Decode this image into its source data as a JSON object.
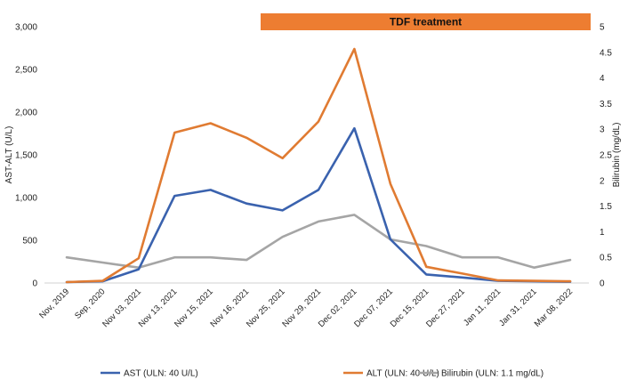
{
  "chart_data": {
    "type": "line",
    "categories": [
      "Nov, 2019",
      "Sep, 2020",
      "Nov 03, 2021",
      "Nov 13, 2021",
      "Nov 15, 2021",
      "Nov 16, 2021",
      "Nov 25, 2021",
      "Nov 29, 2021",
      "Dec 02, 2021",
      "Dec 07, 2021",
      "Dec 15, 2021",
      "Dec 27, 2021",
      "Jan 11, 2021",
      "Jan 31, 2021",
      "Mar 08, 2022"
    ],
    "series": [
      {
        "name": "AST (ULN: 40 U/L)",
        "axis": "left",
        "color": "#3A62AE",
        "values": [
          10,
          20,
          160,
          1020,
          1090,
          930,
          850,
          1090,
          1810,
          510,
          100,
          65,
          25,
          20,
          15
        ]
      },
      {
        "name": "ALT (ULN: 40 U/L)",
        "axis": "left",
        "color": "#E07B32",
        "values": [
          10,
          25,
          290,
          1760,
          1870,
          1700,
          1460,
          1890,
          2740,
          1160,
          190,
          110,
          30,
          25,
          20
        ]
      },
      {
        "name": "Bilirubin (ULN: 1.1 mg/dL)",
        "axis": "right",
        "color": "#A5A5A5",
        "values": [
          0.5,
          0.4,
          0.3,
          0.5,
          0.5,
          0.45,
          0.9,
          1.2,
          1.33,
          0.85,
          0.72,
          0.5,
          0.5,
          0.3,
          0.45
        ]
      }
    ],
    "y_left": {
      "label": "AST-ALT (U/L)",
      "ylim": [
        0,
        3000
      ],
      "ticks": [
        "0",
        "500",
        "1,000",
        "1,500",
        "2,000",
        "2,500",
        "3,000"
      ]
    },
    "y_right": {
      "label": "Bilirubin (mg/dL)",
      "ylim": [
        0,
        5
      ],
      "ticks": [
        "0",
        "0.5",
        "1",
        "1.5",
        "2",
        "2.5",
        "3",
        "3.5",
        "4",
        "4.5",
        "5"
      ]
    },
    "annotation": {
      "text": "TDF treatment",
      "color": "#ED7D31",
      "from_category": "Nov 25, 2021",
      "to_category": "Mar 08, 2022"
    },
    "grid": false,
    "legend_position": "bottom"
  }
}
